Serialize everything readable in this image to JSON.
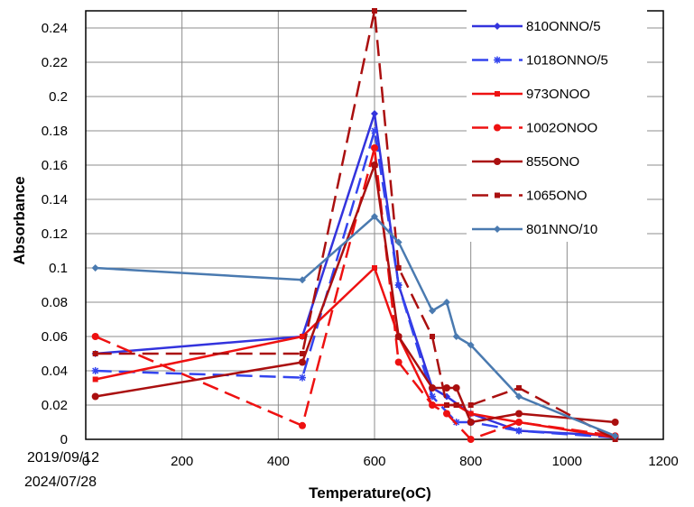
{
  "chart_data": {
    "type": "line",
    "xlabel": "Temperature(oC)",
    "ylabel": "Absorbance",
    "xlim": [
      0,
      1200
    ],
    "ylim": [
      0,
      0.25
    ],
    "grid": true,
    "legend_position": "top-right",
    "xticks": [
      0,
      200,
      400,
      600,
      800,
      1000,
      1200
    ],
    "yticks": [
      0,
      0.02,
      0.04,
      0.06,
      0.08,
      0.1,
      0.12,
      0.14,
      0.16,
      0.18,
      0.2,
      0.22,
      0.24
    ],
    "series": [
      {
        "name": "810ONNO/5",
        "color": "#3333dd",
        "dash": "solid",
        "marker": "diamond",
        "points": [
          [
            20,
            0.05
          ],
          [
            450,
            0.06
          ],
          [
            600,
            0.19
          ],
          [
            650,
            0.09
          ],
          [
            720,
            0.03
          ],
          [
            750,
            0.025
          ],
          [
            800,
            0.015
          ],
          [
            900,
            0.005
          ],
          [
            1100,
            0.002
          ]
        ]
      },
      {
        "name": "1018ONNO/5",
        "color": "#3344ee",
        "dash": "dash",
        "marker": "star",
        "points": [
          [
            20,
            0.04
          ],
          [
            450,
            0.036
          ],
          [
            600,
            0.18
          ],
          [
            650,
            0.09
          ],
          [
            720,
            0.025
          ],
          [
            770,
            0.01
          ],
          [
            800,
            0.01
          ],
          [
            900,
            0.005
          ],
          [
            1100,
            0.001
          ]
        ]
      },
      {
        "name": "973ONOO",
        "color": "#ee1111",
        "dash": "solid",
        "marker": "square",
        "points": [
          [
            20,
            0.035
          ],
          [
            450,
            0.06
          ],
          [
            600,
            0.1
          ],
          [
            650,
            0.06
          ],
          [
            720,
            0.02
          ],
          [
            770,
            0.02
          ],
          [
            800,
            0.015
          ],
          [
            900,
            0.01
          ],
          [
            1100,
            0.001
          ]
        ]
      },
      {
        "name": "1002ONOO",
        "color": "#ee1111",
        "dash": "dash",
        "marker": "circle",
        "points": [
          [
            20,
            0.06
          ],
          [
            450,
            0.008
          ],
          [
            600,
            0.17
          ],
          [
            650,
            0.045
          ],
          [
            720,
            0.02
          ],
          [
            750,
            0.015
          ],
          [
            800,
            0.0
          ],
          [
            900,
            0.01
          ],
          [
            1100,
            0.002
          ]
        ]
      },
      {
        "name": "855ONO",
        "color": "#aa0f0f",
        "dash": "solid",
        "marker": "circle",
        "points": [
          [
            20,
            0.025
          ],
          [
            450,
            0.045
          ],
          [
            600,
            0.16
          ],
          [
            650,
            0.06
          ],
          [
            720,
            0.03
          ],
          [
            750,
            0.03
          ],
          [
            770,
            0.03
          ],
          [
            800,
            0.01
          ],
          [
            900,
            0.015
          ],
          [
            1100,
            0.01
          ]
        ]
      },
      {
        "name": "1065ONO",
        "color": "#aa0f0f",
        "dash": "dash",
        "marker": "square",
        "points": [
          [
            20,
            0.05
          ],
          [
            450,
            0.05
          ],
          [
            600,
            0.25
          ],
          [
            650,
            0.1
          ],
          [
            720,
            0.06
          ],
          [
            750,
            0.02
          ],
          [
            770,
            0.02
          ],
          [
            800,
            0.02
          ],
          [
            900,
            0.03
          ],
          [
            1100,
            0.0
          ]
        ]
      },
      {
        "name": "801NNO/10",
        "color": "#4a7ab0",
        "dash": "solid",
        "marker": "diamond",
        "points": [
          [
            20,
            0.1
          ],
          [
            450,
            0.093
          ],
          [
            600,
            0.13
          ],
          [
            650,
            0.115
          ],
          [
            720,
            0.075
          ],
          [
            750,
            0.08
          ],
          [
            770,
            0.06
          ],
          [
            800,
            0.055
          ],
          [
            900,
            0.025
          ],
          [
            1100,
            0.002
          ]
        ]
      }
    ]
  },
  "watermark": {
    "line1": "2019/09/12",
    "line2": "2024/07/28"
  }
}
